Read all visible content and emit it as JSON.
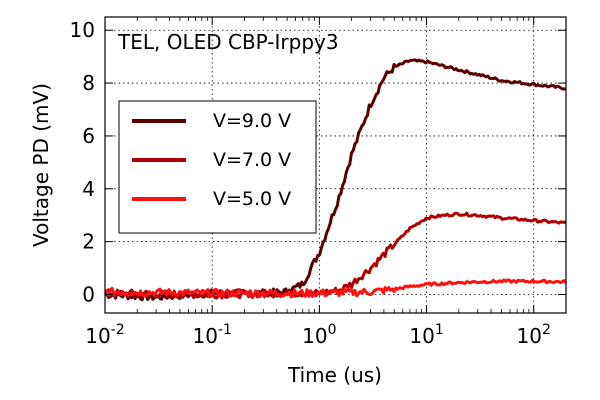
{
  "chart_data": {
    "type": "line",
    "annotation": "TEL, OLED CBP-Irppy3",
    "title": "",
    "xlabel": "Time (us)",
    "ylabel": "Voltage PD (mV)",
    "xscale": "log",
    "xlim": [
      0.01,
      200
    ],
    "ylim": [
      -0.7,
      10.5
    ],
    "xticks": [
      {
        "value": 0.01,
        "base": "10",
        "exp": "-2"
      },
      {
        "value": 0.1,
        "base": "10",
        "exp": "-1"
      },
      {
        "value": 1,
        "base": "10",
        "exp": "0"
      },
      {
        "value": 10,
        "base": "10",
        "exp": "1"
      },
      {
        "value": 100,
        "base": "10",
        "exp": "2"
      }
    ],
    "yticks": [
      "0",
      "2",
      "4",
      "6",
      "8",
      "10"
    ],
    "grid": true,
    "legend_position": "center-left",
    "series": [
      {
        "name": "V=9.0 V",
        "color": "#5a0000",
        "x": [
          0.01,
          0.03,
          0.1,
          0.3,
          0.5,
          0.7,
          1.0,
          1.5,
          2.0,
          3.0,
          4.0,
          5.0,
          7.0,
          10,
          20,
          50,
          100,
          200
        ],
        "y": [
          0.0,
          -0.1,
          0.05,
          0.05,
          0.1,
          0.4,
          1.6,
          3.6,
          5.3,
          7.2,
          8.2,
          8.6,
          8.85,
          8.8,
          8.5,
          8.1,
          7.95,
          7.8
        ]
      },
      {
        "name": "V=7.0 V",
        "color": "#b00000",
        "x": [
          0.01,
          0.1,
          0.5,
          1.0,
          1.5,
          2.0,
          3.0,
          5.0,
          7.0,
          10,
          15,
          20,
          30,
          50,
          100,
          200
        ],
        "y": [
          0.05,
          0.0,
          0.05,
          0.05,
          0.15,
          0.4,
          1.0,
          1.9,
          2.5,
          2.9,
          3.0,
          3.05,
          3.0,
          2.9,
          2.8,
          2.7
        ]
      },
      {
        "name": "V=5.0 V",
        "color": "#ff1010",
        "x": [
          0.01,
          0.1,
          0.5,
          1.0,
          3.0,
          5.0,
          7.0,
          10,
          20,
          30,
          50,
          100,
          200
        ],
        "y": [
          0.1,
          0.05,
          0.05,
          0.05,
          0.1,
          0.2,
          0.3,
          0.38,
          0.45,
          0.48,
          0.5,
          0.5,
          0.48
        ]
      }
    ]
  }
}
